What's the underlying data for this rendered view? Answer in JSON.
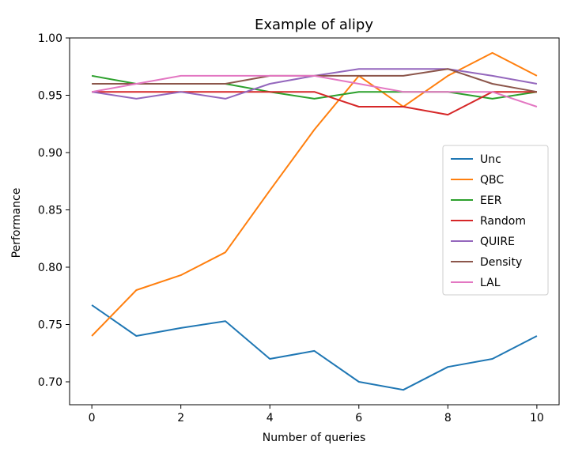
{
  "chart_data": {
    "type": "line",
    "title": "Example of alipy",
    "xlabel": "Number of queries",
    "ylabel": "Performance",
    "x": [
      0,
      1,
      2,
      3,
      4,
      5,
      6,
      7,
      8,
      9,
      10
    ],
    "xlim": [
      -0.5,
      10.5
    ],
    "ylim": [
      0.68,
      1.0
    ],
    "xticks": [
      0,
      2,
      4,
      6,
      8,
      10
    ],
    "xtick_labels": [
      "0",
      "2",
      "4",
      "6",
      "8",
      "10"
    ],
    "yticks": [
      0.7,
      0.75,
      0.8,
      0.85,
      0.9,
      0.95,
      1.0
    ],
    "ytick_labels": [
      "0.70",
      "0.75",
      "0.80",
      "0.85",
      "0.90",
      "0.95",
      "1.00"
    ],
    "grid": false,
    "legend_position": "center-right",
    "series": [
      {
        "name": "Unc",
        "color": "#1f77b4",
        "values": [
          0.767,
          0.74,
          0.747,
          0.753,
          0.72,
          0.727,
          0.7,
          0.693,
          0.713,
          0.72,
          0.74
        ]
      },
      {
        "name": "QBC",
        "color": "#ff7f0e",
        "values": [
          0.74,
          0.78,
          0.793,
          0.813,
          0.867,
          0.92,
          0.967,
          0.94,
          0.967,
          0.987,
          0.967
        ]
      },
      {
        "name": "EER",
        "color": "#2ca02c",
        "values": [
          0.967,
          0.96,
          0.96,
          0.96,
          0.953,
          0.947,
          0.953,
          0.953,
          0.953,
          0.947,
          0.953
        ]
      },
      {
        "name": "Random",
        "color": "#d62728",
        "values": [
          0.953,
          0.953,
          0.953,
          0.953,
          0.953,
          0.953,
          0.94,
          0.94,
          0.933,
          0.953,
          0.953
        ]
      },
      {
        "name": "QUIRE",
        "color": "#9467bd",
        "values": [
          0.953,
          0.947,
          0.953,
          0.947,
          0.96,
          0.967,
          0.973,
          0.973,
          0.973,
          0.967,
          0.96
        ]
      },
      {
        "name": "Density",
        "color": "#8c564b",
        "values": [
          0.96,
          0.96,
          0.96,
          0.96,
          0.967,
          0.967,
          0.967,
          0.967,
          0.973,
          0.96,
          0.953
        ]
      },
      {
        "name": "LAL",
        "color": "#e377c2",
        "values": [
          0.953,
          0.96,
          0.967,
          0.967,
          0.967,
          0.967,
          0.96,
          0.953,
          0.953,
          0.953,
          0.94
        ]
      }
    ]
  }
}
